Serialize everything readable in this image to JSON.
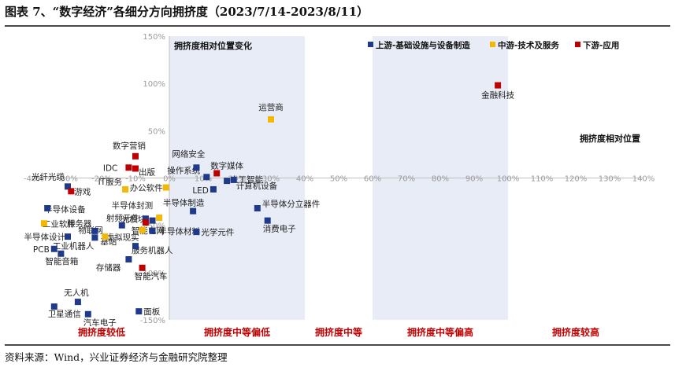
{
  "figure": {
    "title": "图表 7、“数字经济”各细分方向拥挤度（2023/7/14-2023/8/11）",
    "source": "资料来源：Wind，兴业证券经济与金融研究院整理"
  },
  "chart_data": {
    "type": "scatter",
    "xlim": [
      -40,
      140
    ],
    "ylim": [
      -150,
      150
    ],
    "x_ticks": [
      -40,
      -30,
      -20,
      -10,
      0,
      10,
      20,
      30,
      40,
      50,
      60,
      70,
      80,
      90,
      100,
      110,
      120,
      130,
      140
    ],
    "y_ticks": [
      -150,
      -100,
      -50,
      0,
      50,
      100,
      150
    ],
    "tick_suffix": "%",
    "grid": false,
    "legend_position": "top-right",
    "region_bands": [
      {
        "from": -40,
        "to": 0,
        "label": "拥挤度较低",
        "shaded": false
      },
      {
        "from": 0,
        "to": 40,
        "label": "拥挤度中等偏低",
        "shaded": true
      },
      {
        "from": 40,
        "to": 60,
        "label": "拥挤度中等",
        "shaded": false
      },
      {
        "from": 60,
        "to": 100,
        "label": "拥挤度中等偏高",
        "shaded": true
      },
      {
        "from": 100,
        "to": 140,
        "label": "拥挤度较高",
        "shaded": false
      }
    ],
    "annotations": {
      "y_axis_title": "拥挤度相对位置变化",
      "x_axis_title": "拥挤度相对位置"
    },
    "series": [
      {
        "name": "上游-基础设施与设备制造",
        "color": "#1f3a8a",
        "points": [
          {
            "label": "网络安全",
            "x": 8,
            "y": 11
          },
          {
            "label": "操作系统",
            "x": 11,
            "y": 1
          },
          {
            "label": "人工智能",
            "x": 17,
            "y": -3
          },
          {
            "label": "LED",
            "x": 13,
            "y": -12
          },
          {
            "label": "计算机设备",
            "x": 19,
            "y": -2
          },
          {
            "label": "光纤光缆",
            "x": -30,
            "y": -9
          },
          {
            "label": "半导体设备",
            "x": -36,
            "y": -32
          },
          {
            "label": "半导体制造",
            "x": 7,
            "y": -35
          },
          {
            "label": "射频元件",
            "x": -7,
            "y": -43
          },
          {
            "label": "光模块",
            "x": -5,
            "y": -45
          },
          {
            "label": "半导体分立器件",
            "x": 26,
            "y": -32
          },
          {
            "label": "光学元件",
            "x": 8,
            "y": -57
          },
          {
            "label": "消费电子",
            "x": 29,
            "y": -45
          },
          {
            "label": "服务器",
            "x": -22,
            "y": -56
          },
          {
            "label": "半导体设计",
            "x": -30,
            "y": -62
          },
          {
            "label": "工业机器人",
            "x": -22,
            "y": -63
          },
          {
            "label": "半导体材料",
            "x": -5,
            "y": -56
          },
          {
            "label": "物联网",
            "x": -14,
            "y": -50
          },
          {
            "label": "服务机器人",
            "x": -10,
            "y": -72
          },
          {
            "label": "PCB",
            "x": -34,
            "y": -75
          },
          {
            "label": "智能音箱",
            "x": -32,
            "y": -80
          },
          {
            "label": "存储器",
            "x": -12,
            "y": -86
          },
          {
            "label": "无人机",
            "x": -27,
            "y": -131
          },
          {
            "label": "卫星通信",
            "x": -34,
            "y": -136
          },
          {
            "label": "汽车电子",
            "x": -24,
            "y": -144
          },
          {
            "label": "面板",
            "x": -9,
            "y": -141
          }
        ]
      },
      {
        "name": "中游-技术及服务",
        "color": "#f5b800",
        "points": [
          {
            "label": "运营商",
            "x": 30,
            "y": 62
          },
          {
            "label": "IT服务",
            "x": -13,
            "y": -12
          },
          {
            "label": "办公软件",
            "x": -1,
            "y": -10
          },
          {
            "label": "半导体封测",
            "x": -3,
            "y": -42
          },
          {
            "label": "工业软件",
            "x": -37,
            "y": -48
          },
          {
            "label": "虚拟现实",
            "x": -8,
            "y": -55
          },
          {
            "label": "基站",
            "x": -19,
            "y": -62
          }
        ]
      },
      {
        "name": "下游-应用",
        "color": "#c00000",
        "points": [
          {
            "label": "金融科技",
            "x": 97,
            "y": 98
          },
          {
            "label": "数字营销",
            "x": -10,
            "y": 23
          },
          {
            "label": "IDC",
            "x": -12,
            "y": 11
          },
          {
            "label": "出版",
            "x": -10,
            "y": 10
          },
          {
            "label": "数字媒体",
            "x": 14,
            "y": 5
          },
          {
            "label": "游戏",
            "x": -29,
            "y": -14
          },
          {
            "label": "智能电网",
            "x": -7,
            "y": -47
          },
          {
            "label": "智能汽车",
            "x": -8,
            "y": -95
          }
        ]
      }
    ]
  }
}
